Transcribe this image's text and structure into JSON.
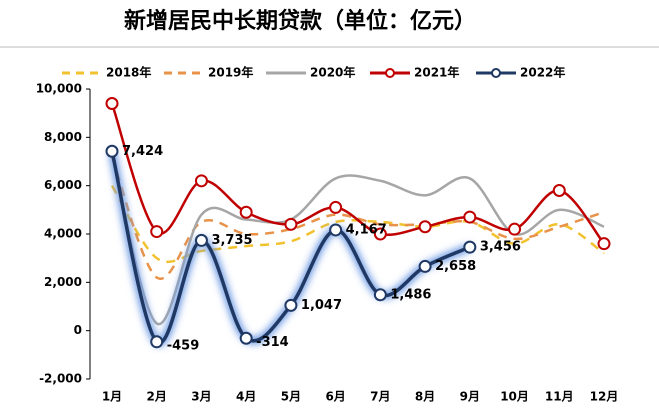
{
  "chart_data": {
    "type": "line",
    "title": "新增居民中长期贷款（单位：亿元）",
    "categories": [
      "1月",
      "2月",
      "3月",
      "4月",
      "5月",
      "6月",
      "7月",
      "8月",
      "9月",
      "10月",
      "11月",
      "12月"
    ],
    "ylim": [
      -2000,
      10000
    ],
    "yticks": [
      {
        "value": -2000,
        "label": "-2,000"
      },
      0,
      {
        "value": 2000,
        "label": "2,000"
      },
      {
        "value": 4000,
        "label": "4,000"
      },
      {
        "value": 6000,
        "label": "6,000"
      },
      {
        "value": 8000,
        "label": "8,000"
      },
      {
        "value": 10000,
        "label": "10,000"
      }
    ],
    "series": [
      {
        "name": "2018年",
        "color": "#f2c12e",
        "dash": true,
        "values": [
          6000,
          3000,
          3300,
          3500,
          3700,
          4500,
          4500,
          4300,
          4500,
          3600,
          4400,
          3200
        ]
      },
      {
        "name": "2019年",
        "color": "#e8924a",
        "dash": true,
        "values": [
          7200,
          2200,
          4500,
          4000,
          4200,
          4800,
          4400,
          4400,
          4500,
          3800,
          4300,
          4900
        ]
      },
      {
        "name": "2020年",
        "color": "#a6a6a6",
        "values": [
          7300,
          300,
          4800,
          4600,
          4600,
          6300,
          6200,
          5600,
          6300,
          4000,
          5000,
          4300
        ]
      },
      {
        "name": "2021年",
        "color": "#c00000",
        "marker": true,
        "values": [
          9400,
          4100,
          6200,
          4900,
          4400,
          5100,
          4000,
          4300,
          4700,
          4200,
          5800,
          3600
        ]
      },
      {
        "name": "2022年",
        "color": "#1f3864",
        "marker": true,
        "glow": true,
        "values": [
          7424,
          -459,
          3735,
          -314,
          1047,
          4167,
          1486,
          2658,
          3456,
          null,
          null,
          null
        ],
        "value_labels": [
          "7,424",
          "-459",
          "3,735",
          "-314",
          "1,047",
          "4,167",
          "1,486",
          "2,658",
          "3,456",
          null,
          null,
          null
        ]
      }
    ]
  }
}
